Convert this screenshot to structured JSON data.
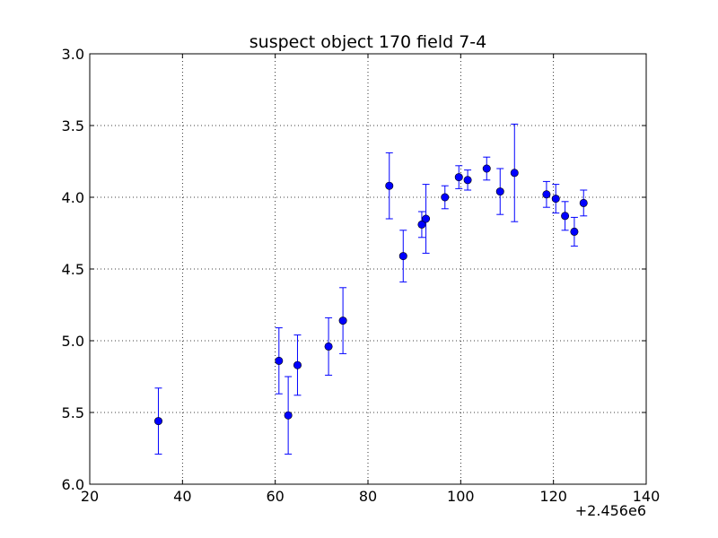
{
  "chart_data": {
    "type": "scatter",
    "title": "suspect object 170 field 7-4",
    "xlabel": "",
    "ylabel": "",
    "x_offset_label": "+2.456e6",
    "xlim": [
      20,
      140
    ],
    "ylim": [
      3.0,
      6.0
    ],
    "y_inverted": true,
    "grid": true,
    "x_ticks": [
      "20",
      "40",
      "60",
      "80",
      "100",
      "120",
      "140"
    ],
    "y_ticks": [
      "3.0",
      "3.5",
      "4.0",
      "4.5",
      "5.0",
      "5.5",
      "6.0"
    ],
    "marker_color": "#0000ff",
    "series": [
      {
        "points": [
          {
            "x": 34.8,
            "y": 5.56,
            "err": 0.23
          },
          {
            "x": 60.8,
            "y": 5.14,
            "err": 0.23
          },
          {
            "x": 62.8,
            "y": 5.52,
            "err": 0.27
          },
          {
            "x": 64.8,
            "y": 5.17,
            "err": 0.21
          },
          {
            "x": 71.5,
            "y": 5.04,
            "err": 0.2
          },
          {
            "x": 74.6,
            "y": 4.86,
            "err": 0.23
          },
          {
            "x": 84.6,
            "y": 3.92,
            "err": 0.23
          },
          {
            "x": 87.6,
            "y": 4.41,
            "err": 0.18
          },
          {
            "x": 91.6,
            "y": 4.19,
            "err": 0.09
          },
          {
            "x": 92.5,
            "y": 4.15,
            "err": 0.24
          },
          {
            "x": 96.6,
            "y": 4.0,
            "err": 0.08
          },
          {
            "x": 99.6,
            "y": 3.86,
            "err": 0.08
          },
          {
            "x": 101.5,
            "y": 3.88,
            "err": 0.07
          },
          {
            "x": 105.6,
            "y": 3.8,
            "err": 0.08
          },
          {
            "x": 108.5,
            "y": 3.96,
            "err": 0.16
          },
          {
            "x": 111.6,
            "y": 3.83,
            "err": 0.34
          },
          {
            "x": 118.5,
            "y": 3.98,
            "err": 0.09
          },
          {
            "x": 120.5,
            "y": 4.01,
            "err": 0.1
          },
          {
            "x": 122.5,
            "y": 4.13,
            "err": 0.1
          },
          {
            "x": 124.5,
            "y": 4.24,
            "err": 0.1
          },
          {
            "x": 126.5,
            "y": 4.04,
            "err": 0.09
          }
        ]
      }
    ]
  }
}
